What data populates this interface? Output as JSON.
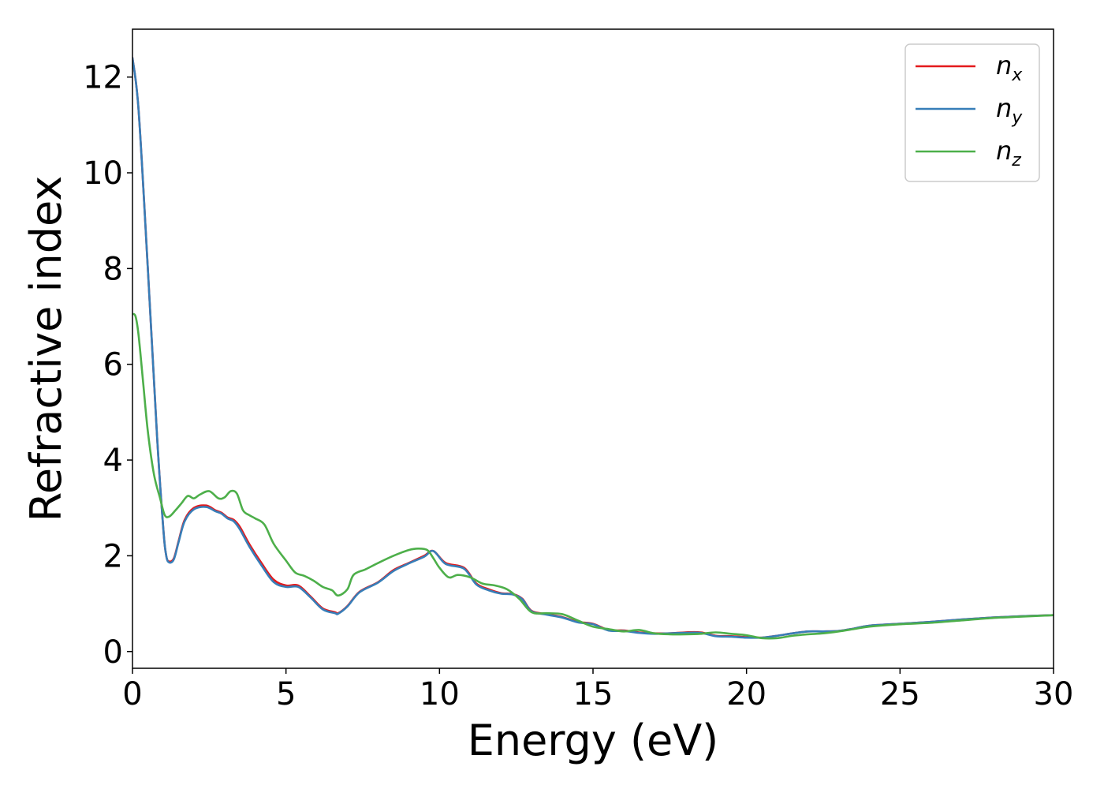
{
  "chart_data": {
    "type": "line",
    "title": "",
    "xlabel": "Energy (eV)",
    "ylabel": "Refractive index",
    "xlim": [
      0,
      30
    ],
    "ylim": [
      -0.35,
      13.0
    ],
    "xticks": [
      0,
      5,
      10,
      15,
      20,
      25,
      30
    ],
    "yticks": [
      0,
      2,
      4,
      6,
      8,
      10,
      12
    ],
    "grid": false,
    "legend_position": "top-right",
    "series": [
      {
        "name": "n_x",
        "label_base": "n",
        "label_sub": "x",
        "color": "#e41a1c",
        "x": [
          0,
          0.2,
          0.5,
          0.8,
          1.0,
          1.1,
          1.2,
          1.35,
          1.5,
          1.7,
          2.0,
          2.4,
          2.7,
          2.9,
          3.1,
          3.3,
          3.5,
          3.8,
          4.2,
          4.6,
          5.0,
          5.4,
          5.8,
          6.2,
          6.6,
          6.7,
          7.0,
          7.4,
          8.0,
          8.5,
          9.0,
          9.5,
          9.8,
          10.2,
          10.8,
          11.2,
          11.6,
          12.0,
          12.4,
          12.7,
          13.0,
          13.5,
          14.0,
          14.5,
          15.0,
          15.5,
          16.0,
          16.5,
          17.0,
          17.5,
          18.0,
          18.5,
          19.0,
          19.5,
          20.0,
          20.5,
          21.0,
          21.5,
          22.0,
          22.5,
          23.0,
          23.5,
          24.0,
          25.0,
          26.0,
          27.0,
          28.0,
          29.0,
          30.0
        ],
        "values": [
          12.4,
          11.3,
          8.0,
          4.5,
          2.6,
          2.0,
          1.88,
          1.95,
          2.3,
          2.75,
          3.0,
          3.05,
          2.95,
          2.9,
          2.8,
          2.75,
          2.6,
          2.25,
          1.85,
          1.5,
          1.38,
          1.38,
          1.15,
          0.9,
          0.82,
          0.8,
          0.95,
          1.25,
          1.45,
          1.7,
          1.85,
          2.0,
          2.1,
          1.85,
          1.75,
          1.42,
          1.3,
          1.22,
          1.2,
          1.1,
          0.85,
          0.78,
          0.72,
          0.62,
          0.58,
          0.45,
          0.44,
          0.4,
          0.38,
          0.38,
          0.4,
          0.4,
          0.33,
          0.32,
          0.3,
          0.29,
          0.33,
          0.38,
          0.42,
          0.42,
          0.43,
          0.48,
          0.54,
          0.58,
          0.62,
          0.67,
          0.71,
          0.74,
          0.76
        ]
      },
      {
        "name": "n_y",
        "label_base": "n",
        "label_sub": "y",
        "color": "#377eb8",
        "x": [
          0,
          0.2,
          0.5,
          0.8,
          1.0,
          1.1,
          1.2,
          1.35,
          1.5,
          1.7,
          2.0,
          2.4,
          2.7,
          2.9,
          3.1,
          3.3,
          3.5,
          3.8,
          4.2,
          4.6,
          5.0,
          5.4,
          5.8,
          6.2,
          6.6,
          6.7,
          7.0,
          7.4,
          8.0,
          8.5,
          9.0,
          9.5,
          9.8,
          10.2,
          10.8,
          11.2,
          11.6,
          12.0,
          12.4,
          12.7,
          13.0,
          13.5,
          14.0,
          14.5,
          15.0,
          15.5,
          16.0,
          16.5,
          17.0,
          17.5,
          18.0,
          18.5,
          19.0,
          19.5,
          20.0,
          20.5,
          21.0,
          21.5,
          22.0,
          22.5,
          23.0,
          23.5,
          24.0,
          25.0,
          26.0,
          27.0,
          28.0,
          29.0,
          30.0
        ],
        "values": [
          12.4,
          11.3,
          8.0,
          4.5,
          2.6,
          2.0,
          1.86,
          1.93,
          2.28,
          2.72,
          2.97,
          3.02,
          2.93,
          2.88,
          2.78,
          2.72,
          2.55,
          2.2,
          1.8,
          1.45,
          1.35,
          1.35,
          1.13,
          0.88,
          0.8,
          0.79,
          0.94,
          1.24,
          1.44,
          1.68,
          1.84,
          1.98,
          2.1,
          1.83,
          1.73,
          1.4,
          1.28,
          1.21,
          1.19,
          1.09,
          0.84,
          0.77,
          0.71,
          0.61,
          0.57,
          0.44,
          0.43,
          0.39,
          0.37,
          0.38,
          0.39,
          0.39,
          0.32,
          0.31,
          0.29,
          0.29,
          0.33,
          0.38,
          0.42,
          0.42,
          0.43,
          0.48,
          0.54,
          0.58,
          0.62,
          0.67,
          0.71,
          0.74,
          0.76
        ]
      },
      {
        "name": "n_z",
        "label_base": "n",
        "label_sub": "z",
        "color": "#4daf4a",
        "x": [
          0,
          0.1,
          0.2,
          0.35,
          0.5,
          0.7,
          0.9,
          1.05,
          1.2,
          1.4,
          1.6,
          1.8,
          2.0,
          2.2,
          2.5,
          2.8,
          3.0,
          3.2,
          3.4,
          3.6,
          3.8,
          4.0,
          4.3,
          4.6,
          5.0,
          5.3,
          5.6,
          5.9,
          6.2,
          6.5,
          6.7,
          7.0,
          7.2,
          7.6,
          8.0,
          8.5,
          9.0,
          9.3,
          9.6,
          9.8,
          10.0,
          10.3,
          10.6,
          11.0,
          11.4,
          11.8,
          12.2,
          12.6,
          13.0,
          13.5,
          14.0,
          14.5,
          15.0,
          15.5,
          16.0,
          16.5,
          17.0,
          17.5,
          18.0,
          18.5,
          19.0,
          19.5,
          20.0,
          20.5,
          21.0,
          21.5,
          22.0,
          22.5,
          23.0,
          23.5,
          24.0,
          25.0,
          26.0,
          27.0,
          28.0,
          29.0,
          30.0
        ],
        "values": [
          7.05,
          7.0,
          6.6,
          5.6,
          4.6,
          3.7,
          3.2,
          2.85,
          2.82,
          2.95,
          3.1,
          3.25,
          3.2,
          3.28,
          3.35,
          3.2,
          3.22,
          3.35,
          3.3,
          2.95,
          2.85,
          2.78,
          2.65,
          2.25,
          1.9,
          1.65,
          1.58,
          1.48,
          1.35,
          1.28,
          1.17,
          1.3,
          1.6,
          1.72,
          1.85,
          2.0,
          2.12,
          2.15,
          2.12,
          1.95,
          1.75,
          1.55,
          1.6,
          1.55,
          1.42,
          1.38,
          1.3,
          1.1,
          0.82,
          0.8,
          0.78,
          0.65,
          0.52,
          0.47,
          0.42,
          0.45,
          0.38,
          0.36,
          0.36,
          0.37,
          0.4,
          0.37,
          0.34,
          0.28,
          0.28,
          0.33,
          0.36,
          0.38,
          0.42,
          0.47,
          0.52,
          0.57,
          0.6,
          0.65,
          0.7,
          0.73,
          0.76
        ]
      }
    ]
  }
}
